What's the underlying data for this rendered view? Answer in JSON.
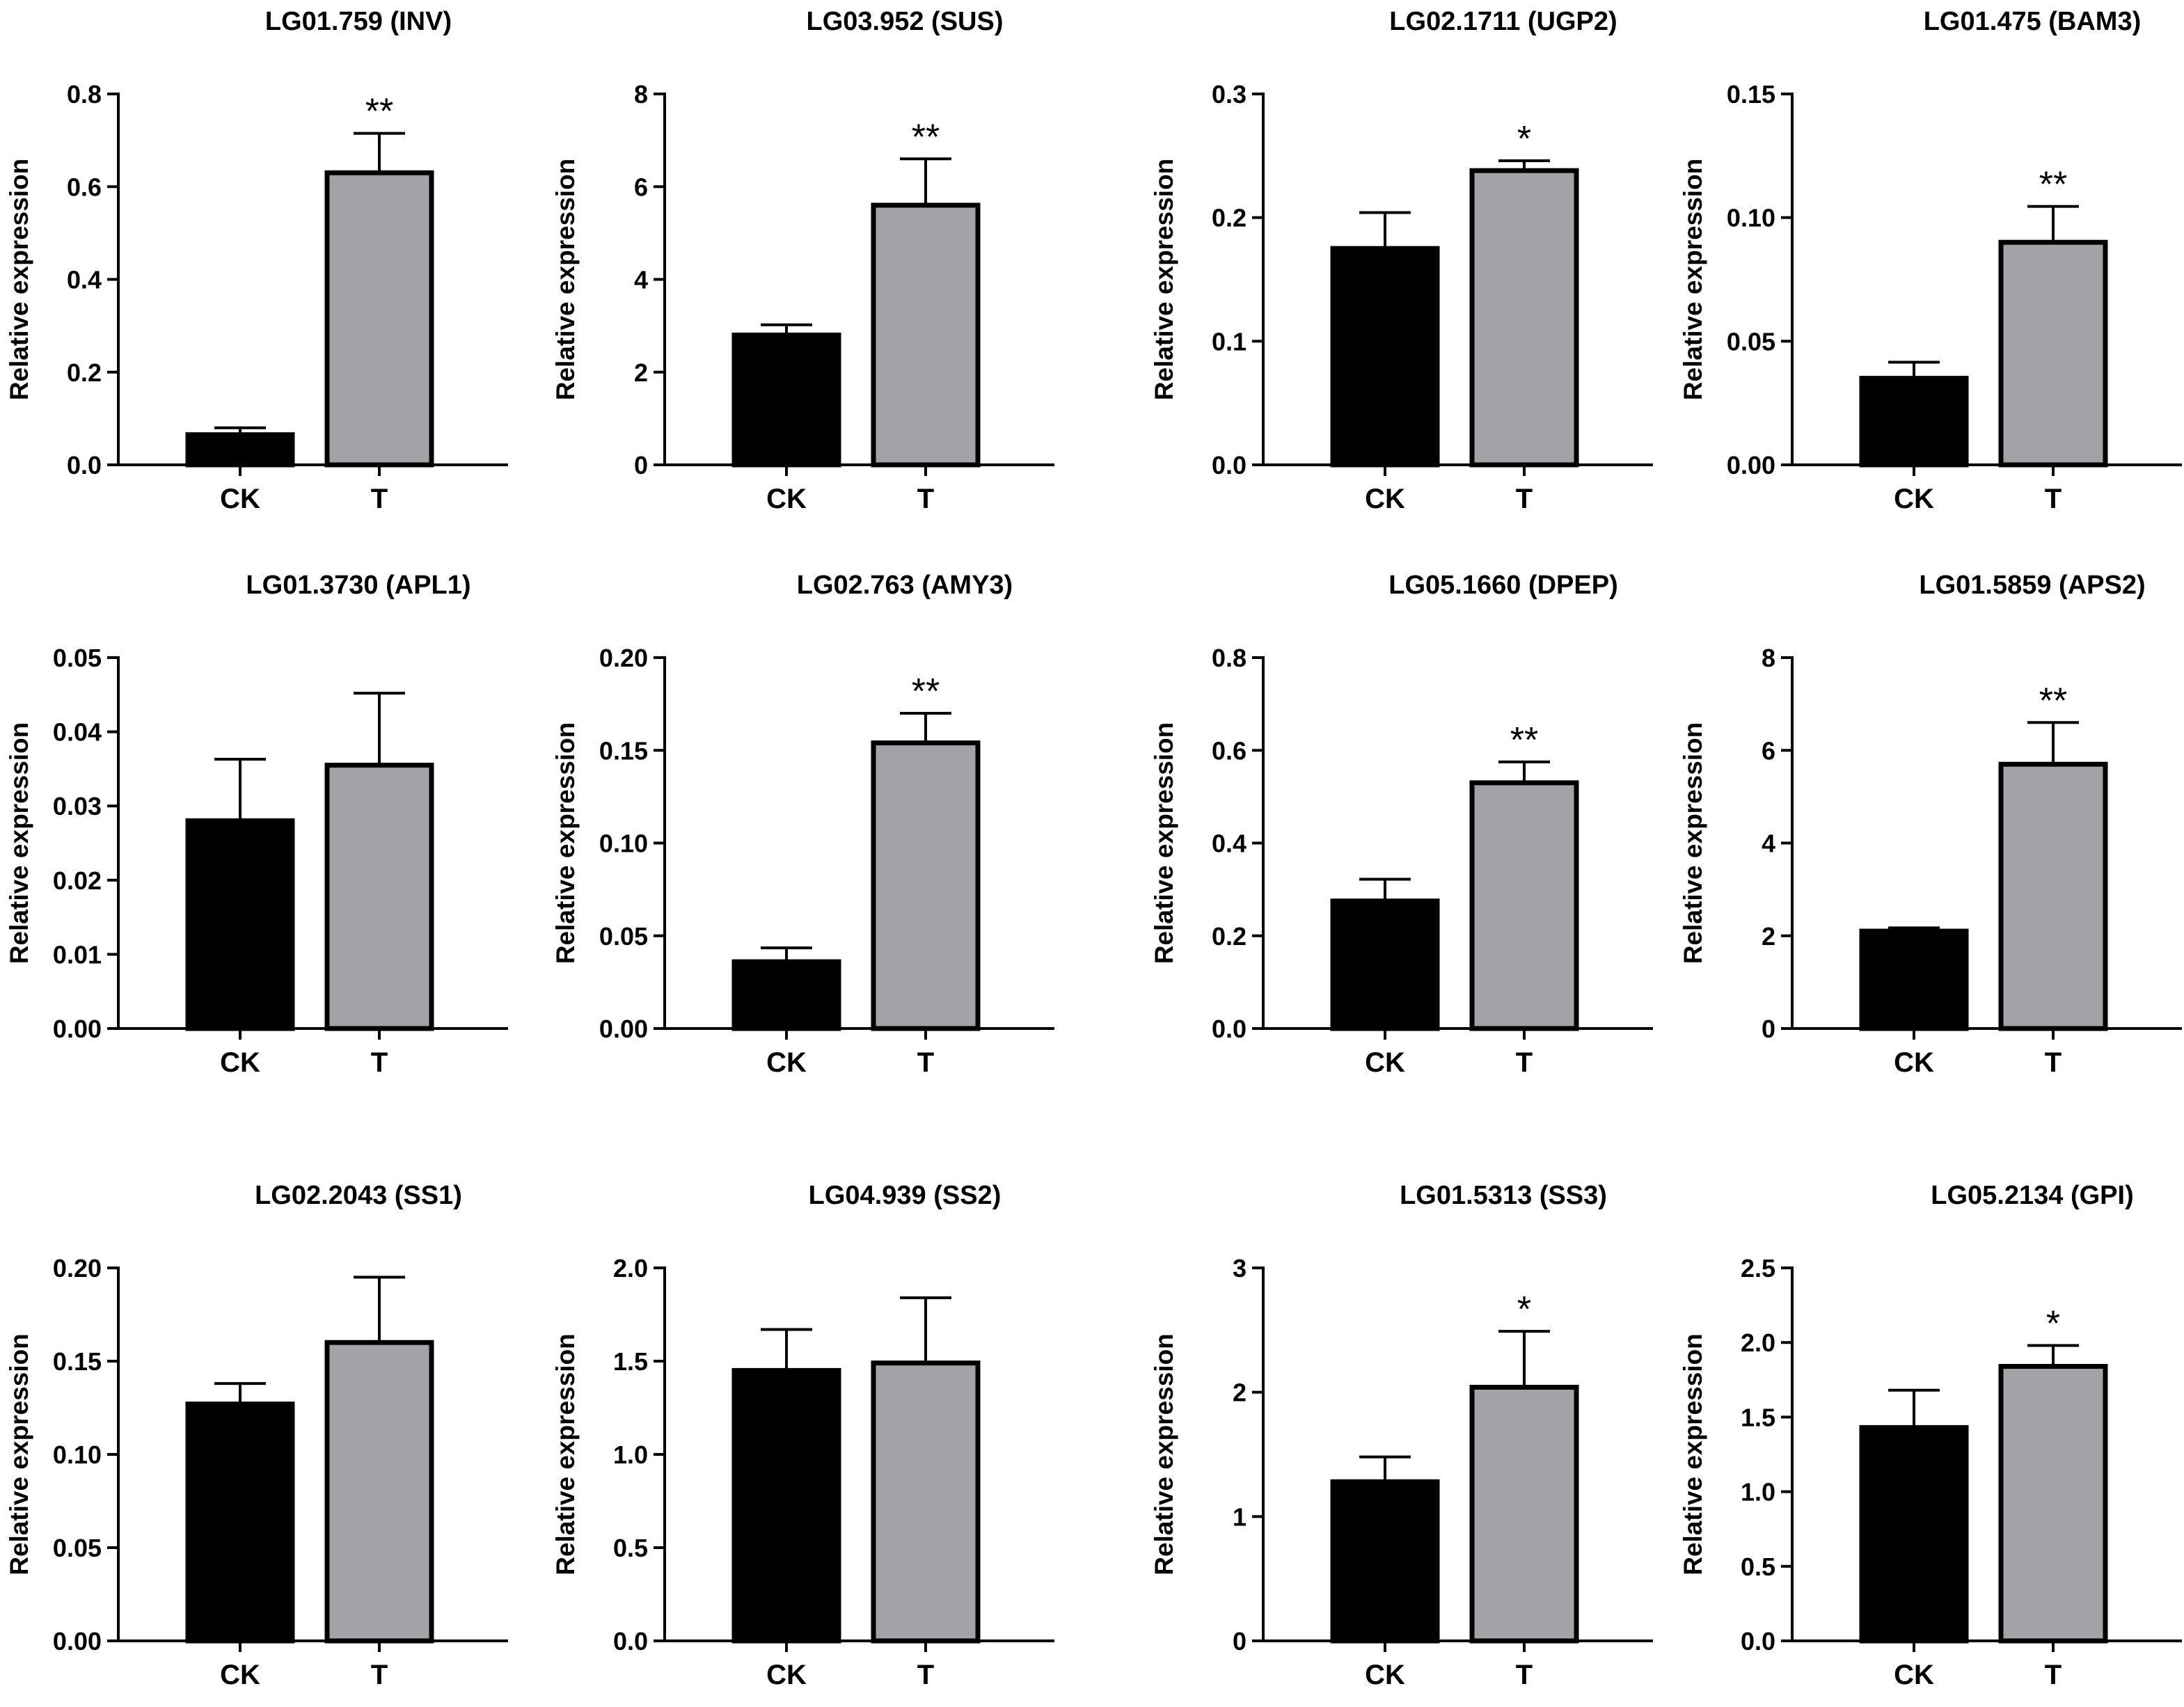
{
  "chart_data": [
    {
      "type": "bar",
      "title": "LG01.759 (INV)",
      "ylabel": "Relative expression",
      "categories": [
        "CK",
        "T"
      ],
      "values": [
        0.065,
        0.63
      ],
      "errors": [
        0.015,
        0.085
      ],
      "significance": [
        "",
        "**"
      ],
      "ylim": [
        0,
        0.8
      ],
      "yticks": [
        0,
        0.2,
        0.4,
        0.6,
        0.8
      ],
      "ytick_labels": [
        "0.0",
        "0.2",
        "0.4",
        "0.6",
        "0.8"
      ],
      "colors": [
        "#000000",
        "#a3a2a7"
      ]
    },
    {
      "type": "bar",
      "title": "LG03.952 (SUS)",
      "ylabel": "Relative expression",
      "categories": [
        "CK",
        "T"
      ],
      "values": [
        2.8,
        5.6
      ],
      "errors": [
        0.22,
        1.0
      ],
      "significance": [
        "",
        "**"
      ],
      "ylim": [
        0,
        8
      ],
      "yticks": [
        0,
        2,
        4,
        6,
        8
      ],
      "ytick_labels": [
        "0",
        "2",
        "4",
        "6",
        "8"
      ],
      "colors": [
        "#000000",
        "#a3a2a7"
      ]
    },
    {
      "type": "bar",
      "title": "LG02.1711 (UGP2)",
      "ylabel": "Relative expression",
      "categories": [
        "CK",
        "T"
      ],
      "values": [
        0.175,
        0.238
      ],
      "errors": [
        0.029,
        0.008
      ],
      "significance": [
        "",
        "*"
      ],
      "ylim": [
        0,
        0.3
      ],
      "yticks": [
        0,
        0.1,
        0.2,
        0.3
      ],
      "ytick_labels": [
        "0.0",
        "0.1",
        "0.2",
        "0.3"
      ],
      "colors": [
        "#000000",
        "#a3a2a7"
      ]
    },
    {
      "type": "bar",
      "title": "LG01.475 (BAM3)",
      "ylabel": "Relative expression",
      "categories": [
        "CK",
        "T"
      ],
      "values": [
        0.035,
        0.09
      ],
      "errors": [
        0.0065,
        0.0145
      ],
      "significance": [
        "",
        "**"
      ],
      "ylim": [
        0,
        0.15
      ],
      "yticks": [
        0,
        0.05,
        0.1,
        0.15
      ],
      "ytick_labels": [
        "0.00",
        "0.05",
        "0.10",
        "0.15"
      ],
      "colors": [
        "#000000",
        "#a3a2a7"
      ]
    },
    {
      "type": "bar",
      "title": "LG01.3730 (APL1)",
      "ylabel": "Relative expression",
      "categories": [
        "CK",
        "T"
      ],
      "values": [
        0.028,
        0.0355
      ],
      "errors": [
        0.0083,
        0.0097
      ],
      "significance": [
        "",
        ""
      ],
      "ylim": [
        0,
        0.05
      ],
      "yticks": [
        0,
        0.01,
        0.02,
        0.03,
        0.04,
        0.05
      ],
      "ytick_labels": [
        "0.00",
        "0.01",
        "0.02",
        "0.03",
        "0.04",
        "0.05"
      ],
      "colors": [
        "#000000",
        "#a3a2a7"
      ]
    },
    {
      "type": "bar",
      "title": "LG02.763 (AMY3)",
      "ylabel": "Relative expression",
      "categories": [
        "CK",
        "T"
      ],
      "values": [
        0.036,
        0.154
      ],
      "errors": [
        0.0075,
        0.016
      ],
      "significance": [
        "",
        "**"
      ],
      "ylim": [
        0,
        0.2
      ],
      "yticks": [
        0,
        0.05,
        0.1,
        0.15,
        0.2
      ],
      "ytick_labels": [
        "0.00",
        "0.05",
        "0.10",
        "0.15",
        "0.20"
      ],
      "colors": [
        "#000000",
        "#a3a2a7"
      ]
    },
    {
      "type": "bar",
      "title": "LG05.1660 (DPEP)",
      "ylabel": "Relative expression",
      "categories": [
        "CK",
        "T"
      ],
      "values": [
        0.275,
        0.53
      ],
      "errors": [
        0.047,
        0.045
      ],
      "significance": [
        "",
        "**"
      ],
      "ylim": [
        0,
        0.8
      ],
      "yticks": [
        0,
        0.2,
        0.4,
        0.6,
        0.8
      ],
      "ytick_labels": [
        "0.0",
        "0.2",
        "0.4",
        "0.6",
        "0.8"
      ],
      "colors": [
        "#000000",
        "#a3a2a7"
      ]
    },
    {
      "type": "bar",
      "title": "LG01.5859 (APS2)",
      "ylabel": "Relative expression",
      "categories": [
        "CK",
        "T"
      ],
      "values": [
        2.1,
        5.7
      ],
      "errors": [
        0.07,
        0.9
      ],
      "significance": [
        "",
        "**"
      ],
      "ylim": [
        0,
        8
      ],
      "yticks": [
        0,
        2,
        4,
        6,
        8
      ],
      "ytick_labels": [
        "0",
        "2",
        "4",
        "6",
        "8"
      ],
      "colors": [
        "#000000",
        "#a3a2a7"
      ]
    },
    {
      "type": "bar",
      "title": "LG02.2043 (SS1)",
      "ylabel": "Relative expression",
      "categories": [
        "CK",
        "T"
      ],
      "values": [
        0.127,
        0.16
      ],
      "errors": [
        0.011,
        0.035
      ],
      "significance": [
        "",
        ""
      ],
      "ylim": [
        0,
        0.2
      ],
      "yticks": [
        0,
        0.05,
        0.1,
        0.15,
        0.2
      ],
      "ytick_labels": [
        "0.00",
        "0.05",
        "0.10",
        "0.15",
        "0.20"
      ],
      "colors": [
        "#000000",
        "#a3a2a7"
      ]
    },
    {
      "type": "bar",
      "title": "LG04.939 (SS2)",
      "ylabel": "Relative expression",
      "categories": [
        "CK",
        "T"
      ],
      "values": [
        1.45,
        1.49
      ],
      "errors": [
        0.22,
        0.35
      ],
      "significance": [
        "",
        ""
      ],
      "ylim": [
        0,
        2
      ],
      "yticks": [
        0,
        0.5,
        1,
        1.5,
        2
      ],
      "ytick_labels": [
        "0.0",
        "0.5",
        "1.0",
        "1.5",
        "2.0"
      ],
      "colors": [
        "#000000",
        "#a3a2a7"
      ]
    },
    {
      "type": "bar",
      "title": "LG01.5313 (SS3)",
      "ylabel": "Relative expression",
      "categories": [
        "CK",
        "T"
      ],
      "values": [
        1.28,
        2.04
      ],
      "errors": [
        0.2,
        0.45
      ],
      "significance": [
        "",
        "*"
      ],
      "ylim": [
        0,
        3
      ],
      "yticks": [
        0,
        1,
        2,
        3
      ],
      "ytick_labels": [
        "0",
        "1",
        "2",
        "3"
      ],
      "colors": [
        "#000000",
        "#a3a2a7"
      ]
    },
    {
      "type": "bar",
      "title": "LG05.2134 (GPI)",
      "ylabel": "Relative expression",
      "categories": [
        "CK",
        "T"
      ],
      "values": [
        1.43,
        1.84
      ],
      "errors": [
        0.25,
        0.14
      ],
      "significance": [
        "",
        "*"
      ],
      "ylim": [
        0,
        2.5
      ],
      "yticks": [
        0,
        0.5,
        1,
        1.5,
        2,
        2.5
      ],
      "ytick_labels": [
        "0.0",
        "0.5",
        "1.0",
        "1.5",
        "2.0",
        "2.5"
      ],
      "colors": [
        "#000000",
        "#a3a2a7"
      ]
    }
  ]
}
